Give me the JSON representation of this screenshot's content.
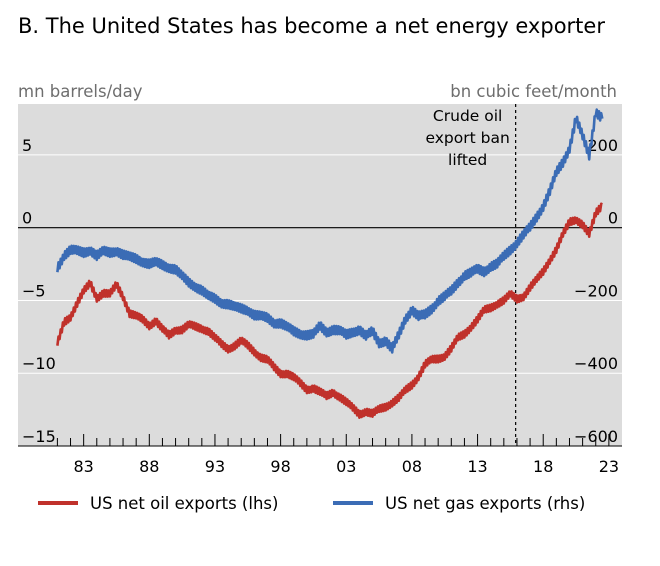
{
  "chart_data": {
    "type": "line",
    "title": "B. The United States has become a net energy exporter",
    "left_axis": {
      "label": "mn barrels/day",
      "range": [
        -15,
        8.5
      ],
      "ticks": [
        5,
        0,
        -5,
        -10,
        -15
      ],
      "tick_labels": [
        "5",
        "0",
        "−5",
        "−10",
        "−15"
      ]
    },
    "right_axis": {
      "label": "bn cubic feet/month",
      "range": [
        -600,
        340
      ],
      "ticks": [
        200,
        0,
        -200,
        -400,
        -600
      ],
      "tick_labels": [
        "200",
        "0",
        "−200",
        "−400",
        "−600"
      ]
    },
    "x_axis": {
      "range": [
        1978.0,
        2024.0
      ],
      "ticks": [
        1983,
        1988,
        1993,
        1998,
        2003,
        2008,
        2013,
        2018,
        2023
      ],
      "tick_labels": [
        "83",
        "88",
        "93",
        "98",
        "03",
        "08",
        "13",
        "18",
        "23"
      ]
    },
    "annotation": {
      "x": 2015.9,
      "lines": [
        "Crude oil",
        "export ban",
        "lifted"
      ]
    },
    "grid": "horizontal at tick values",
    "background": "#dcdcdc",
    "legend_position": "bottom",
    "series": [
      {
        "name": "US net oil exports (lhs)",
        "axis": "left",
        "color": "#c0312b",
        "x": [
          1981.0,
          1981.5,
          1982.0,
          1982.5,
          1983.0,
          1983.5,
          1984.0,
          1984.5,
          1985.0,
          1985.5,
          1986.0,
          1986.5,
          1987.0,
          1987.5,
          1988.0,
          1988.5,
          1989.0,
          1989.5,
          1990.0,
          1990.5,
          1991.0,
          1991.5,
          1992.0,
          1992.5,
          1993.0,
          1993.5,
          1994.0,
          1994.5,
          1995.0,
          1995.5,
          1996.0,
          1996.5,
          1997.0,
          1997.5,
          1998.0,
          1998.5,
          1999.0,
          1999.5,
          2000.0,
          2000.5,
          2001.0,
          2001.5,
          2002.0,
          2002.5,
          2003.0,
          2003.5,
          2004.0,
          2004.5,
          2005.0,
          2005.5,
          2006.0,
          2006.5,
          2007.0,
          2007.5,
          2008.0,
          2008.5,
          2009.0,
          2009.5,
          2010.0,
          2010.5,
          2011.0,
          2011.5,
          2012.0,
          2012.5,
          2013.0,
          2013.5,
          2014.0,
          2014.5,
          2015.0,
          2015.5,
          2016.0,
          2016.5,
          2017.0,
          2017.5,
          2018.0,
          2018.5,
          2019.0,
          2019.5,
          2020.0,
          2020.5,
          2021.0,
          2021.5,
          2022.0,
          2022.5
        ],
        "values": [
          -8.0,
          -6.5,
          -6.1,
          -5.2,
          -4.4,
          -3.8,
          -4.8,
          -4.5,
          -4.6,
          -3.9,
          -4.7,
          -5.9,
          -6.1,
          -6.3,
          -6.7,
          -6.4,
          -7.0,
          -7.4,
          -7.0,
          -7.0,
          -6.7,
          -6.8,
          -6.9,
          -7.1,
          -7.6,
          -8.0,
          -8.3,
          -8.1,
          -7.8,
          -8.1,
          -8.5,
          -8.9,
          -9.1,
          -9.6,
          -10.0,
          -10.0,
          -10.3,
          -10.7,
          -11.1,
          -11.0,
          -11.3,
          -11.6,
          -11.3,
          -11.6,
          -12.0,
          -12.4,
          -12.8,
          -12.6,
          -12.8,
          -12.5,
          -12.3,
          -12.0,
          -11.7,
          -11.2,
          -10.8,
          -10.2,
          -9.4,
          -9.1,
          -9.0,
          -8.8,
          -8.3,
          -7.6,
          -7.3,
          -6.8,
          -6.3,
          -5.7,
          -5.5,
          -5.2,
          -5.0,
          -4.6,
          -4.9,
          -4.7,
          -4.1,
          -3.6,
          -3.0,
          -2.2,
          -1.5,
          -0.5,
          0.4,
          0.6,
          0.2,
          -0.5,
          1.0,
          1.6
        ]
      },
      {
        "name": "US net gas exports (rhs)",
        "axis": "right",
        "color": "#3b6cb5",
        "x": [
          1981.0,
          1981.5,
          1982.0,
          1982.5,
          1983.0,
          1983.5,
          1984.0,
          1984.5,
          1985.0,
          1985.5,
          1986.0,
          1986.5,
          1987.0,
          1987.5,
          1988.0,
          1988.5,
          1989.0,
          1989.5,
          1990.0,
          1990.5,
          1991.0,
          1991.5,
          1992.0,
          1992.5,
          1993.0,
          1993.5,
          1994.0,
          1994.5,
          1995.0,
          1995.5,
          1996.0,
          1996.5,
          1997.0,
          1997.5,
          1998.0,
          1998.5,
          1999.0,
          1999.5,
          2000.0,
          2000.5,
          2001.0,
          2001.5,
          2002.0,
          2002.5,
          2003.0,
          2003.5,
          2004.0,
          2004.5,
          2005.0,
          2005.5,
          2006.0,
          2006.5,
          2007.0,
          2007.5,
          2008.0,
          2008.5,
          2009.0,
          2009.5,
          2010.0,
          2010.5,
          2011.0,
          2011.5,
          2012.0,
          2012.5,
          2013.0,
          2013.5,
          2014.0,
          2014.5,
          2015.0,
          2015.5,
          2016.0,
          2016.5,
          2017.0,
          2017.5,
          2018.0,
          2018.5,
          2019.0,
          2019.5,
          2020.0,
          2020.5,
          2021.0,
          2021.5,
          2022.0,
          2022.5
        ],
        "values": [
          -110,
          -75,
          -62,
          -65,
          -68,
          -60,
          -78,
          -66,
          -68,
          -62,
          -75,
          -82,
          -85,
          -92,
          -100,
          -97,
          -102,
          -108,
          -115,
          -135,
          -150,
          -160,
          -172,
          -190,
          -195,
          -205,
          -210,
          -220,
          -222,
          -225,
          -240,
          -245,
          -248,
          -260,
          -262,
          -275,
          -285,
          -290,
          -295,
          -295,
          -270,
          -285,
          -280,
          -285,
          -295,
          -285,
          -280,
          -300,
          -285,
          -315,
          -310,
          -335,
          -295,
          -250,
          -225,
          -245,
          -240,
          -222,
          -200,
          -190,
          -175,
          -150,
          -130,
          -125,
          -115,
          -120,
          -105,
          -100,
          -80,
          -60,
          -40,
          -20,
          0,
          30,
          60,
          100,
          150,
          180,
          220,
          300,
          250,
          200,
          320,
          300
        ]
      }
    ]
  }
}
